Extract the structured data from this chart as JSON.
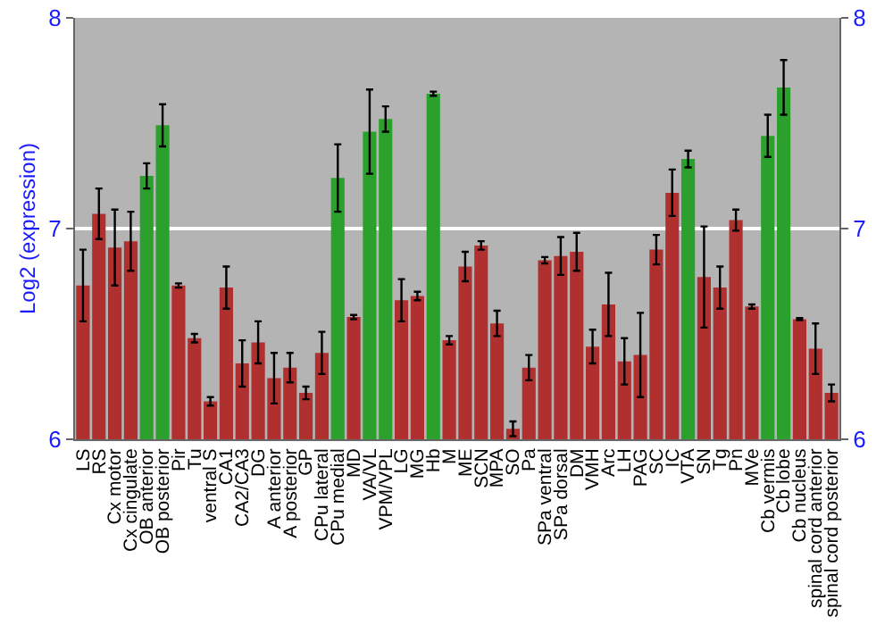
{
  "chart_data": {
    "type": "bar",
    "ylabel": "Log2 (expression)",
    "categories": [
      "LS",
      "RS",
      "Cx motor",
      "Cx cingulate",
      "OB anterior",
      "OB posterior",
      "Pir",
      "Tu",
      "ventral S",
      "CA1",
      "CA2/CA3",
      "DG",
      "A anterior",
      "A posterior",
      "GP",
      "CPu lateral",
      "CPu medial",
      "MD",
      "VA/VL",
      "VPM/VPL",
      "LG",
      "MG",
      "Hb",
      "M",
      "ME",
      "SCN",
      "MPA",
      "SO",
      "Pa",
      "SPa ventral",
      "SPa dorsal",
      "DM",
      "VMH",
      "Arc",
      "LH",
      "PAG",
      "SC",
      "IC",
      "VTA",
      "SN",
      "Tg",
      "Pn",
      "MVe",
      "Cb vermis",
      "Cb lobe",
      "Cb nucleus",
      "spinal cord anterior",
      "spinal cord posterior"
    ],
    "values": [
      6.73,
      7.07,
      6.91,
      6.94,
      7.25,
      7.49,
      6.73,
      6.48,
      6.18,
      6.72,
      6.36,
      6.46,
      6.29,
      6.34,
      6.22,
      6.41,
      7.24,
      6.58,
      7.46,
      7.52,
      6.66,
      6.68,
      7.64,
      6.47,
      6.82,
      6.92,
      6.55,
      6.05,
      6.34,
      6.85,
      6.87,
      6.89,
      6.44,
      6.64,
      6.37,
      6.4,
      6.9,
      7.17,
      7.33,
      6.77,
      6.72,
      7.04,
      6.63,
      7.44,
      7.67,
      6.57,
      6.43,
      6.22
    ],
    "errors": [
      0.17,
      0.12,
      0.18,
      0.14,
      0.06,
      0.1,
      0.01,
      0.02,
      0.02,
      0.1,
      0.11,
      0.1,
      0.12,
      0.07,
      0.03,
      0.1,
      0.16,
      0.01,
      0.2,
      0.06,
      0.1,
      0.02,
      0.01,
      0.02,
      0.07,
      0.02,
      0.06,
      0.035,
      0.06,
      0.015,
      0.09,
      0.09,
      0.08,
      0.15,
      0.11,
      0.2,
      0.07,
      0.11,
      0.04,
      0.24,
      0.1,
      0.05,
      0.01,
      0.1,
      0.13,
      0.005,
      0.12,
      0.04
    ],
    "colors": [
      "#b03030",
      "#b03030",
      "#b03030",
      "#b03030",
      "#2ca02c",
      "#2ca02c",
      "#b03030",
      "#b03030",
      "#b03030",
      "#b03030",
      "#b03030",
      "#b03030",
      "#b03030",
      "#b03030",
      "#b03030",
      "#b03030",
      "#2ca02c",
      "#b03030",
      "#2ca02c",
      "#2ca02c",
      "#b03030",
      "#b03030",
      "#2ca02c",
      "#b03030",
      "#b03030",
      "#b03030",
      "#b03030",
      "#b03030",
      "#b03030",
      "#b03030",
      "#b03030",
      "#b03030",
      "#b03030",
      "#b03030",
      "#b03030",
      "#b03030",
      "#b03030",
      "#b03030",
      "#2ca02c",
      "#b03030",
      "#b03030",
      "#b03030",
      "#b03030",
      "#2ca02c",
      "#2ca02c",
      "#b03030",
      "#b03030",
      "#b03030"
    ],
    "ylim": [
      6,
      8
    ],
    "yticks": [
      6,
      7,
      8
    ],
    "y2lim": [
      6,
      8
    ],
    "y2ticks": [
      6,
      7,
      8
    ],
    "grid": "y"
  }
}
